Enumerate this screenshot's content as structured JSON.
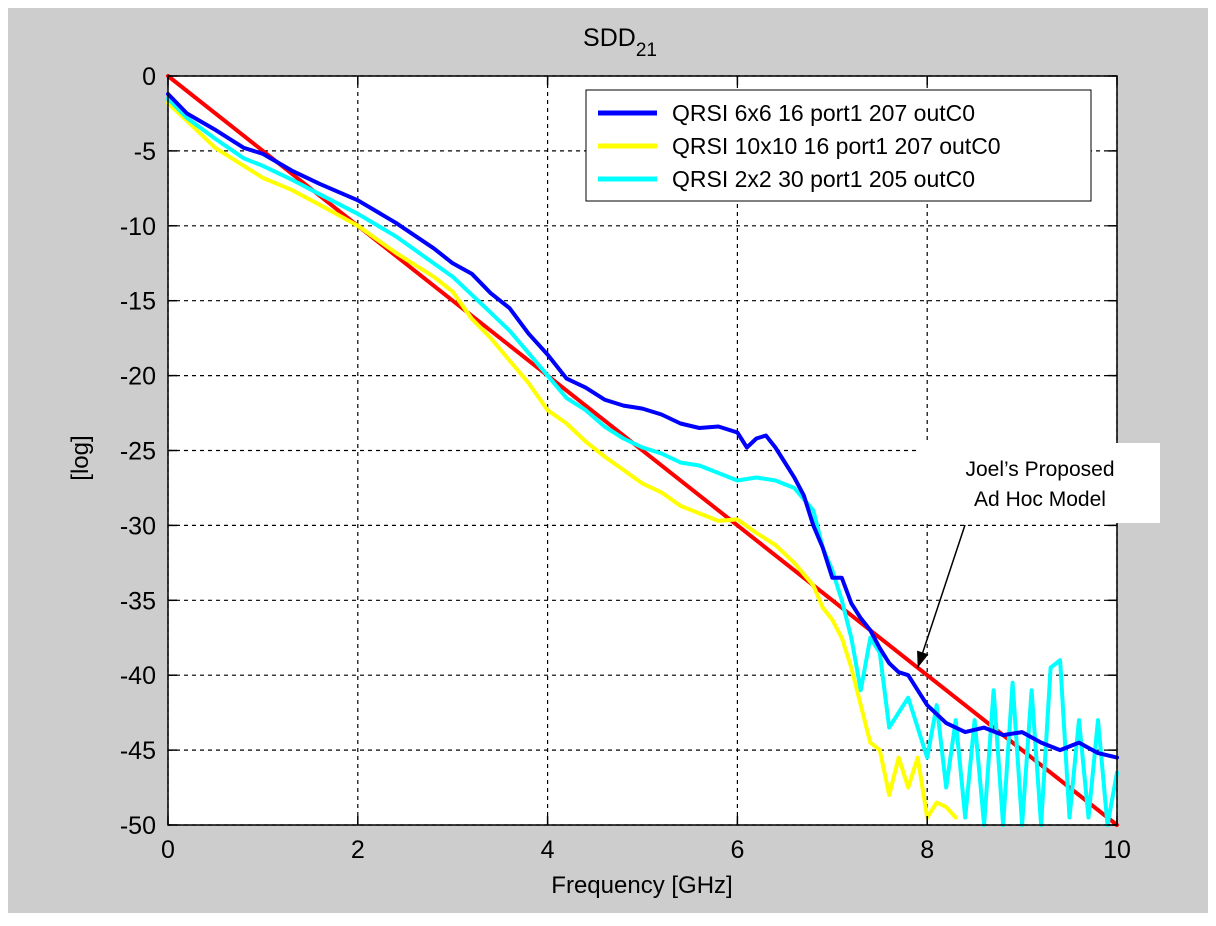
{
  "chart_data": {
    "type": "line",
    "title": "SDD",
    "title_subscript": "21",
    "xlabel": "Frequency [GHz]",
    "ylabel": "[log]",
    "xlim": [
      0,
      10
    ],
    "ylim": [
      -50,
      0
    ],
    "xticks": [
      "0",
      "2",
      "4",
      "6",
      "8",
      "10"
    ],
    "yticks": [
      "0",
      "-5",
      "-10",
      "-15",
      "-20",
      "-25",
      "-30",
      "-35",
      "-40",
      "-45",
      "-50"
    ],
    "grid": true,
    "legend_position": "top-right",
    "series": [
      {
        "name": "QRSI 6x6 16 port1 207 outC0",
        "color": "#0000ff",
        "x": [
          0,
          0.2,
          0.5,
          0.8,
          1.0,
          1.3,
          1.6,
          2.0,
          2.4,
          2.8,
          3.0,
          3.2,
          3.4,
          3.6,
          3.8,
          4.0,
          4.2,
          4.4,
          4.6,
          4.8,
          5.0,
          5.2,
          5.4,
          5.6,
          5.8,
          6.0,
          6.1,
          6.2,
          6.3,
          6.4,
          6.5,
          6.6,
          6.7,
          6.8,
          6.9,
          7.0,
          7.1,
          7.2,
          7.3,
          7.4,
          7.5,
          7.6,
          7.7,
          7.8,
          7.9,
          8.0,
          8.2,
          8.4,
          8.6,
          8.8,
          9.0,
          9.2,
          9.4,
          9.6,
          9.8,
          10.0
        ],
        "y": [
          -1.2,
          -2.5,
          -3.6,
          -4.8,
          -5.2,
          -6.3,
          -7.2,
          -8.3,
          -9.8,
          -11.5,
          -12.5,
          -13.2,
          -14.5,
          -15.5,
          -17.2,
          -18.6,
          -20.2,
          -20.8,
          -21.6,
          -22.0,
          -22.2,
          -22.6,
          -23.2,
          -23.5,
          -23.4,
          -23.8,
          -24.8,
          -24.2,
          -24.0,
          -24.8,
          -25.8,
          -26.8,
          -28.0,
          -30.0,
          -31.5,
          -33.5,
          -33.5,
          -35.2,
          -36.2,
          -37.0,
          -38.2,
          -39.2,
          -39.8,
          -40.0,
          -41.0,
          -42.0,
          -43.2,
          -43.8,
          -43.5,
          -44.0,
          -43.8,
          -44.5,
          -45.0,
          -44.5,
          -45.2,
          -45.5
        ]
      },
      {
        "name": "QRSI 10x10 16 port1 207 outC0",
        "color": "#ffff00",
        "x": [
          0,
          0.2,
          0.5,
          0.8,
          1.0,
          1.3,
          1.6,
          2.0,
          2.4,
          2.8,
          3.0,
          3.2,
          3.4,
          3.6,
          3.8,
          4.0,
          4.2,
          4.4,
          4.6,
          4.8,
          5.0,
          5.2,
          5.4,
          5.6,
          5.8,
          6.0,
          6.2,
          6.4,
          6.6,
          6.8,
          6.9,
          7.0,
          7.1,
          7.2,
          7.3,
          7.4,
          7.5,
          7.6,
          7.7,
          7.8,
          7.9,
          8.0,
          8.1,
          8.2,
          8.3
        ],
        "y": [
          -1.8,
          -3.0,
          -4.8,
          -6.0,
          -6.8,
          -7.6,
          -8.6,
          -10.0,
          -11.8,
          -13.4,
          -14.4,
          -16.2,
          -17.5,
          -19.0,
          -20.5,
          -22.3,
          -23.2,
          -24.4,
          -25.4,
          -26.3,
          -27.2,
          -27.8,
          -28.7,
          -29.2,
          -29.7,
          -29.6,
          -30.5,
          -31.3,
          -32.5,
          -34.0,
          -35.5,
          -36.3,
          -37.5,
          -39.5,
          -42.0,
          -44.5,
          -45.0,
          -48.0,
          -45.5,
          -47.5,
          -45.5,
          -49.5,
          -48.5,
          -48.8,
          -49.5
        ]
      },
      {
        "name": "QRSI 2x2 30 port1 205 outC0",
        "color": "#00ffff",
        "x": [
          0,
          0.2,
          0.5,
          0.8,
          1.0,
          1.3,
          1.6,
          2.0,
          2.4,
          2.8,
          3.0,
          3.2,
          3.4,
          3.6,
          3.8,
          4.0,
          4.2,
          4.4,
          4.6,
          4.8,
          5.0,
          5.2,
          5.4,
          5.6,
          5.8,
          6.0,
          6.2,
          6.4,
          6.6,
          6.8,
          6.9,
          7.0,
          7.1,
          7.2,
          7.3,
          7.4,
          7.5,
          7.6,
          7.7,
          7.8,
          7.9,
          8.0,
          8.1,
          8.2,
          8.3,
          8.4,
          8.5,
          8.6,
          8.7,
          8.8,
          8.9,
          9.0,
          9.1,
          9.2,
          9.3,
          9.4,
          9.5,
          9.6,
          9.7,
          9.8,
          9.9,
          10.0
        ],
        "y": [
          -1.5,
          -2.8,
          -4.2,
          -5.5,
          -6.0,
          -6.9,
          -7.9,
          -9.2,
          -10.7,
          -12.5,
          -13.4,
          -14.6,
          -15.8,
          -17.0,
          -18.5,
          -20.0,
          -21.5,
          -22.3,
          -23.4,
          -24.2,
          -24.8,
          -25.2,
          -25.8,
          -26.0,
          -26.5,
          -27.0,
          -26.8,
          -27.0,
          -27.5,
          -29.0,
          -31.5,
          -33.0,
          -35.0,
          -37.5,
          -41.0,
          -37.5,
          -38.5,
          -43.5,
          -42.5,
          -41.5,
          -43.5,
          -45.5,
          -42.0,
          -47.5,
          -43.0,
          -49.5,
          -43.0,
          -50.0,
          -41.0,
          -50.0,
          -40.5,
          -50.0,
          -41.0,
          -50.0,
          -39.5,
          -39.0,
          -49.5,
          -43.0,
          -49.5,
          -43.0,
          -50.0,
          -46.5
        ]
      },
      {
        "name": "Joel's Proposed Ad Hoc Model",
        "color": "#ff0000",
        "x": [
          0,
          10
        ],
        "y": [
          0,
          -50
        ]
      }
    ],
    "annotation": {
      "line1": "Joel’s Proposed",
      "line2": "Ad Hoc Model",
      "points_to": {
        "x": 7.9,
        "y": -39.5
      }
    }
  }
}
